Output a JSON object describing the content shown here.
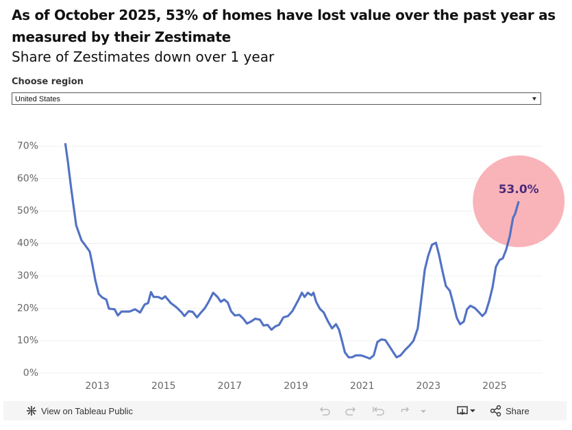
{
  "header": {
    "title": "As of October 2025, 53% of homes have lost value over the past year as measured by their Zestimate",
    "subtitle": "Share of Zestimates down over 1 year"
  },
  "filter": {
    "label": "Choose region",
    "value": "United States"
  },
  "footer": {
    "link": "View on Tableau Public",
    "share": "Share"
  },
  "chart_data": {
    "type": "line",
    "color": "#5272c4",
    "highlight_color": "#f7a1a8",
    "grid": true,
    "xlim": [
      2011.3,
      2026.45
    ],
    "xticks": [
      2013,
      2015,
      2017,
      2019,
      2021,
      2023,
      2025
    ],
    "ylim": [
      0,
      72
    ],
    "yticks": [
      {
        "value": 0,
        "label": "0%"
      },
      {
        "value": 10,
        "label": "10%"
      },
      {
        "value": 20,
        "label": "20%"
      },
      {
        "value": 30,
        "label": "30%"
      },
      {
        "value": 40,
        "label": "40%"
      },
      {
        "value": 50,
        "label": "50%"
      },
      {
        "value": 60,
        "label": "60%"
      },
      {
        "value": 70,
        "label": "70%"
      }
    ],
    "x": [
      2012.03,
      2012.11,
      2012.21,
      2012.36,
      2012.52,
      2012.65,
      2012.77,
      2012.85,
      2012.94,
      2013.04,
      2013.15,
      2013.27,
      2013.35,
      2013.52,
      2013.62,
      2013.73,
      2013.97,
      2014.14,
      2014.29,
      2014.43,
      2014.53,
      2014.62,
      2014.7,
      2014.84,
      2014.95,
      2015.05,
      2015.22,
      2015.38,
      2015.55,
      2015.63,
      2015.76,
      2015.88,
      2016.01,
      2016.13,
      2016.25,
      2016.36,
      2016.5,
      2016.63,
      2016.73,
      2016.83,
      2016.94,
      2017.04,
      2017.15,
      2017.29,
      2017.41,
      2017.52,
      2017.64,
      2017.77,
      2017.91,
      2018.02,
      2018.14,
      2018.26,
      2018.37,
      2018.49,
      2018.62,
      2018.76,
      2018.89,
      2018.99,
      2019.09,
      2019.18,
      2019.26,
      2019.36,
      2019.47,
      2019.53,
      2019.61,
      2019.72,
      2019.84,
      2019.96,
      2020.09,
      2020.21,
      2020.3,
      2020.4,
      2020.48,
      2020.59,
      2020.69,
      2020.81,
      2020.96,
      2021.08,
      2021.23,
      2021.35,
      2021.46,
      2021.58,
      2021.7,
      2021.81,
      2021.93,
      2022.04,
      2022.16,
      2022.31,
      2022.43,
      2022.55,
      2022.68,
      2022.78,
      2022.89,
      2022.99,
      2023.11,
      2023.23,
      2023.32,
      2023.42,
      2023.53,
      2023.65,
      2023.76,
      2023.86,
      2023.96,
      2024.07,
      2024.17,
      2024.27,
      2024.4,
      2024.52,
      2024.63,
      2024.73,
      2024.84,
      2024.94,
      2025.04,
      2025.15,
      2025.25,
      2025.35,
      2025.46,
      2025.56,
      2025.62,
      2025.73
    ],
    "values": [
      70.9,
      65.2,
      56.8,
      45.6,
      41,
      39.2,
      37.5,
      33.5,
      28.6,
      24.4,
      23.3,
      22.7,
      19.9,
      19.7,
      17.8,
      19,
      19,
      19.7,
      18.7,
      21.2,
      21.6,
      25,
      23.5,
      23.5,
      22.9,
      23.7,
      21.6,
      20.4,
      18.7,
      17.6,
      19.1,
      18.9,
      17.2,
      18.7,
      20.1,
      22,
      24.8,
      23.5,
      22,
      22.7,
      21.8,
      19.1,
      17.8,
      18,
      16.8,
      15.3,
      15.9,
      16.8,
      16.5,
      14.7,
      14.9,
      13.4,
      14.4,
      14.9,
      17.2,
      17.6,
      19.1,
      21,
      22.9,
      24.8,
      23.5,
      24.8,
      24,
      24.8,
      22,
      19.9,
      18.7,
      16.1,
      13.8,
      15.1,
      13.4,
      9.6,
      6.4,
      4.9,
      4.9,
      5.5,
      5.5,
      5.1,
      4.5,
      5.5,
      9.6,
      10.4,
      10.2,
      8.5,
      6.6,
      4.9,
      5.5,
      7.3,
      8.5,
      10,
      13.8,
      22.3,
      31.8,
      36,
      39.6,
      40.2,
      36.6,
      31.8,
      26.9,
      25.4,
      21.2,
      17,
      15.1,
      15.9,
      19.7,
      20.8,
      20.1,
      18.9,
      17.6,
      18.7,
      22.3,
      26.5,
      32.8,
      34.9,
      35.4,
      38.1,
      42.3,
      48,
      49.1,
      53
    ],
    "value_labels": [
      null,
      null,
      null,
      null,
      null,
      null,
      null,
      null,
      null,
      null,
      null,
      null,
      null,
      null,
      null,
      null,
      null,
      null,
      null,
      null,
      null,
      null,
      null,
      null,
      null,
      null,
      null,
      null,
      null,
      null,
      null,
      null,
      null,
      null,
      null,
      null,
      null,
      null,
      null,
      null,
      null,
      null,
      null,
      null,
      null,
      null,
      null,
      null,
      null,
      null,
      null,
      null,
      null,
      null,
      null,
      null,
      null,
      null,
      null,
      null,
      null,
      null,
      null,
      null,
      null,
      null,
      null,
      null,
      null,
      null,
      null,
      null,
      null,
      null,
      null,
      null,
      null,
      null,
      null,
      null,
      null,
      null,
      null,
      null,
      null,
      null,
      null,
      null,
      null,
      null,
      null,
      null,
      null,
      null,
      null,
      null,
      null,
      null,
      null,
      null,
      null,
      null,
      null,
      null,
      null,
      null,
      null,
      null,
      null,
      null,
      null,
      null,
      null,
      null,
      null,
      null,
      null,
      null,
      null,
      "53.0%"
    ]
  }
}
